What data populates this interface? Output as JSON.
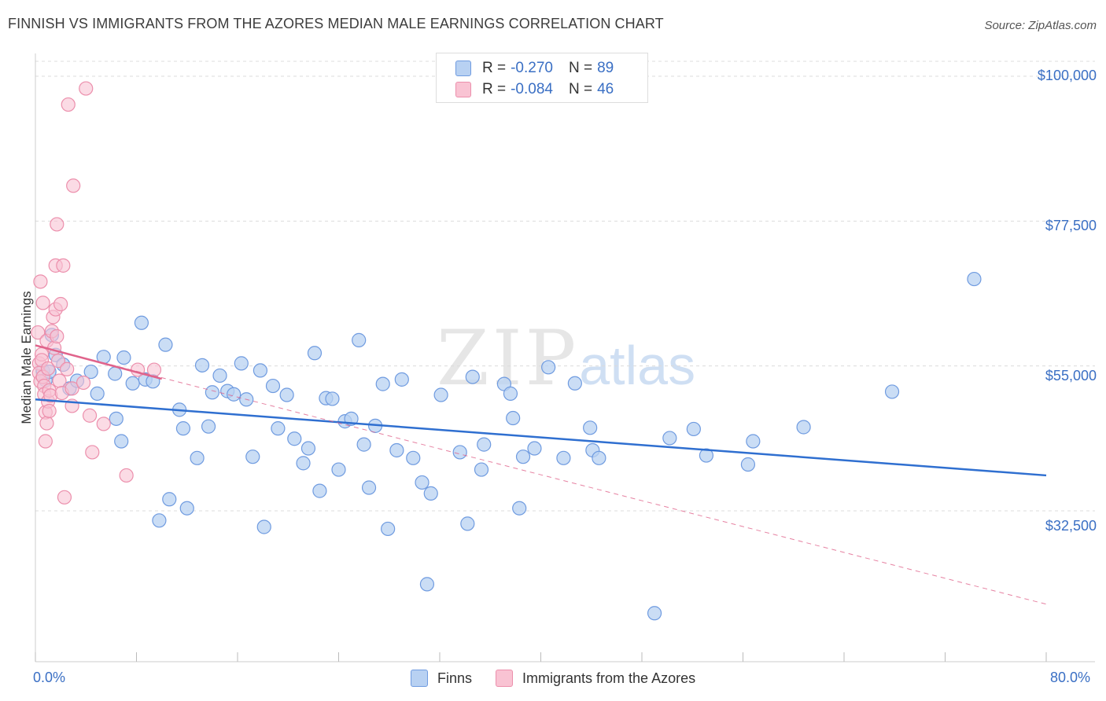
{
  "header": {
    "title": "FINNISH VS IMMIGRANTS FROM THE AZORES MEDIAN MALE EARNINGS CORRELATION CHART",
    "source": "Source: ZipAtlas.com"
  },
  "watermark": {
    "zip": "ZIP",
    "atlas": "atlas"
  },
  "legend": {
    "rows": [
      {
        "r_label": "R =",
        "r_value": "-0.270",
        "n_label": "N =",
        "n_value": "89"
      },
      {
        "r_label": "R =",
        "r_value": "-0.084",
        "n_label": "N =",
        "n_value": "46"
      }
    ],
    "series": [
      {
        "label": "Finns"
      },
      {
        "label": "Immigrants from the Azores"
      }
    ]
  },
  "colors": {
    "finns_fill": "#b8d1f2",
    "finns_stroke": "#6f9be0",
    "finns_line": "#2f6fd0",
    "azores_fill": "#f9c3d3",
    "azores_stroke": "#ec8fac",
    "azores_line": "#e0638b",
    "grid": "#dcdcdc",
    "axis_text": "#3a6fc4"
  },
  "chart_data": {
    "type": "scatter",
    "title": "FINNISH VS IMMIGRANTS FROM THE AZORES MEDIAN MALE EARNINGS CORRELATION CHART",
    "xlabel": "",
    "ylabel": "Median Male Earnings",
    "xlim": [
      0,
      80
    ],
    "ylim": [
      13000,
      105000
    ],
    "x_tick_labels": [
      "0.0%",
      "80.0%"
    ],
    "y_ticks": [
      {
        "value": 100000,
        "label": "$100,000"
      },
      {
        "value": 77500,
        "label": "$77,500"
      },
      {
        "value": 55000,
        "label": "$55,000"
      },
      {
        "value": 32500,
        "label": "$32,500"
      }
    ],
    "series": [
      {
        "name": "Finns",
        "r": -0.27,
        "n": 89,
        "trend": {
          "x": [
            0,
            80
          ],
          "y": [
            49800,
            38000
          ]
        },
        "points": [
          [
            0.6,
            54200
          ],
          [
            0.8,
            52800
          ],
          [
            1.1,
            54100
          ],
          [
            1.3,
            59800
          ],
          [
            1.6,
            56700
          ],
          [
            2.2,
            55200
          ],
          [
            2.7,
            51500
          ],
          [
            3.3,
            52700
          ],
          [
            4.4,
            54100
          ],
          [
            4.9,
            50700
          ],
          [
            5.4,
            56400
          ],
          [
            6.3,
            53800
          ],
          [
            6.4,
            46800
          ],
          [
            6.8,
            43300
          ],
          [
            7.0,
            56300
          ],
          [
            7.7,
            52300
          ],
          [
            8.4,
            61700
          ],
          [
            8.7,
            52900
          ],
          [
            9.3,
            52600
          ],
          [
            9.8,
            31000
          ],
          [
            10.3,
            58300
          ],
          [
            10.6,
            34300
          ],
          [
            11.4,
            48200
          ],
          [
            11.7,
            45300
          ],
          [
            12.0,
            32900
          ],
          [
            12.8,
            40700
          ],
          [
            13.2,
            55100
          ],
          [
            13.7,
            45600
          ],
          [
            14.0,
            50900
          ],
          [
            14.6,
            53500
          ],
          [
            15.2,
            51100
          ],
          [
            15.7,
            50600
          ],
          [
            16.3,
            55400
          ],
          [
            16.7,
            49800
          ],
          [
            17.2,
            40900
          ],
          [
            17.8,
            54300
          ],
          [
            18.1,
            30000
          ],
          [
            18.8,
            51900
          ],
          [
            19.2,
            45300
          ],
          [
            19.9,
            50500
          ],
          [
            20.5,
            43700
          ],
          [
            21.2,
            39900
          ],
          [
            21.6,
            42200
          ],
          [
            22.1,
            57000
          ],
          [
            22.5,
            35600
          ],
          [
            23.0,
            50000
          ],
          [
            23.5,
            49900
          ],
          [
            24.0,
            38900
          ],
          [
            24.5,
            46400
          ],
          [
            25.0,
            46800
          ],
          [
            25.6,
            59000
          ],
          [
            26.0,
            42800
          ],
          [
            26.4,
            36100
          ],
          [
            26.9,
            45700
          ],
          [
            27.5,
            52200
          ],
          [
            27.9,
            29700
          ],
          [
            28.6,
            41900
          ],
          [
            29.0,
            52900
          ],
          [
            29.9,
            40700
          ],
          [
            30.6,
            36900
          ],
          [
            31.0,
            21100
          ],
          [
            31.3,
            35200
          ],
          [
            32.1,
            50500
          ],
          [
            33.6,
            41600
          ],
          [
            34.2,
            30500
          ],
          [
            34.6,
            53300
          ],
          [
            35.3,
            38900
          ],
          [
            35.5,
            42800
          ],
          [
            37.1,
            52200
          ],
          [
            37.6,
            50700
          ],
          [
            37.8,
            46900
          ],
          [
            38.3,
            32900
          ],
          [
            38.6,
            40900
          ],
          [
            39.5,
            42200
          ],
          [
            40.6,
            54800
          ],
          [
            41.8,
            40700
          ],
          [
            42.7,
            52300
          ],
          [
            43.9,
            45400
          ],
          [
            44.1,
            41900
          ],
          [
            44.6,
            40700
          ],
          [
            49.0,
            16600
          ],
          [
            50.2,
            43800
          ],
          [
            52.1,
            45200
          ],
          [
            53.1,
            41100
          ],
          [
            56.4,
            39700
          ],
          [
            56.8,
            43300
          ],
          [
            60.8,
            45500
          ],
          [
            67.8,
            51000
          ],
          [
            74.3,
            68500
          ]
        ]
      },
      {
        "name": "Immigrants from the Azores",
        "r": -0.084,
        "n": 46,
        "trend_solid": {
          "x": [
            0,
            10
          ],
          "y": [
            58200,
            53000
          ]
        },
        "trend_dashed": {
          "x": [
            0,
            80
          ],
          "y": [
            58200,
            18000
          ]
        },
        "points": [
          [
            0.2,
            60200
          ],
          [
            0.3,
            55400
          ],
          [
            0.3,
            53900
          ],
          [
            0.4,
            52600
          ],
          [
            0.4,
            68100
          ],
          [
            0.5,
            56800
          ],
          [
            0.5,
            55900
          ],
          [
            0.6,
            64800
          ],
          [
            0.6,
            53300
          ],
          [
            0.7,
            51900
          ],
          [
            0.7,
            50600
          ],
          [
            0.8,
            43300
          ],
          [
            0.8,
            47800
          ],
          [
            0.9,
            46100
          ],
          [
            0.9,
            58900
          ],
          [
            1.0,
            54600
          ],
          [
            1.0,
            49500
          ],
          [
            1.1,
            51200
          ],
          [
            1.1,
            48000
          ],
          [
            1.2,
            50400
          ],
          [
            1.3,
            60400
          ],
          [
            1.4,
            62600
          ],
          [
            1.5,
            57800
          ],
          [
            1.6,
            70600
          ],
          [
            1.6,
            63800
          ],
          [
            1.7,
            59600
          ],
          [
            1.7,
            77000
          ],
          [
            1.8,
            55800
          ],
          [
            1.9,
            52700
          ],
          [
            2.0,
            64600
          ],
          [
            2.1,
            50800
          ],
          [
            2.2,
            70600
          ],
          [
            2.3,
            34600
          ],
          [
            2.5,
            54500
          ],
          [
            2.6,
            95600
          ],
          [
            2.9,
            48800
          ],
          [
            2.9,
            51500
          ],
          [
            3.0,
            83000
          ],
          [
            3.8,
            52400
          ],
          [
            4.0,
            98100
          ],
          [
            4.3,
            47300
          ],
          [
            4.5,
            41600
          ],
          [
            5.4,
            46000
          ],
          [
            7.2,
            38000
          ],
          [
            8.1,
            54400
          ],
          [
            9.4,
            54400
          ]
        ]
      }
    ]
  },
  "axes": {
    "ylabel": "Median Male Earnings",
    "x_left": "0.0%",
    "x_right": "80.0%"
  }
}
